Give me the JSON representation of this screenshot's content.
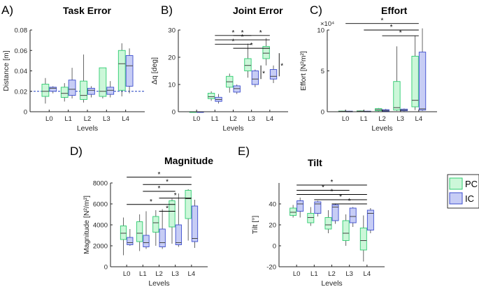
{
  "figure": {
    "legend": [
      {
        "name": "PC",
        "fill": "#ccf7d9",
        "stroke": "#2ecc71"
      },
      {
        "name": "IC",
        "fill": "#c7cdf5",
        "stroke": "#3b4ccf"
      }
    ],
    "colors": {
      "pc_fill": "#ccf7d9",
      "pc_edge": "#2ecc71",
      "ic_fill": "#c7cdf5",
      "ic_edge": "#3b4ccf",
      "axis": "#262626",
      "whisker": "#555555",
      "ref_line": "#1f3fbf"
    }
  },
  "chart_data": [
    {
      "id": "A",
      "letter": "A)",
      "type": "box",
      "title": "Task Error",
      "xlabel": "Levels",
      "ylabel": "Distance [m]",
      "categories": [
        "L0",
        "L1",
        "L2",
        "L3",
        "L4"
      ],
      "ylim": [
        0,
        0.08
      ],
      "yticks": [
        0,
        0.02,
        0.04,
        0.06,
        0.08
      ],
      "ytick_labels": [
        "0",
        "0.02",
        "0.04",
        "0.06",
        "0.08"
      ],
      "exponent_label": "",
      "reference_line": 0.02,
      "series": [
        {
          "name": "PC",
          "boxes": [
            {
              "min": 0.008,
              "q1": 0.015,
              "median": 0.02,
              "q3": 0.027,
              "max": 0.033
            },
            {
              "min": 0.01,
              "q1": 0.014,
              "median": 0.018,
              "q3": 0.024,
              "max": 0.028
            },
            {
              "min": 0.009,
              "q1": 0.012,
              "median": 0.016,
              "q3": 0.03,
              "max": 0.056
            },
            {
              "min": 0.013,
              "q1": 0.015,
              "median": 0.02,
              "q3": 0.043,
              "max": 0.043
            },
            {
              "min": 0.015,
              "q1": 0.021,
              "median": 0.047,
              "q3": 0.06,
              "max": 0.067
            }
          ]
        },
        {
          "name": "IC",
          "boxes": [
            {
              "min": 0.018,
              "q1": 0.02,
              "median": 0.023,
              "q3": 0.024,
              "max": 0.025
            },
            {
              "min": 0.013,
              "q1": 0.016,
              "median": 0.022,
              "q3": 0.031,
              "max": 0.043
            },
            {
              "min": 0.014,
              "q1": 0.017,
              "median": 0.021,
              "q3": 0.023,
              "max": 0.025
            },
            {
              "min": 0.014,
              "q1": 0.017,
              "median": 0.021,
              "q3": 0.024,
              "max": 0.03
            },
            {
              "min": 0.018,
              "q1": 0.025,
              "median": 0.045,
              "q3": 0.055,
              "max": 0.062
            }
          ]
        }
      ],
      "significance": []
    },
    {
      "id": "B",
      "letter": "B)",
      "type": "box",
      "title": "Joint Error",
      "xlabel": "Levels",
      "ylabel": "Δq [deg]",
      "categories": [
        "L0",
        "L1",
        "L2",
        "L3",
        "L4"
      ],
      "ylim": [
        0,
        30
      ],
      "yticks": [
        0,
        10,
        20,
        30
      ],
      "ytick_labels": [
        "0",
        "10",
        "20",
        "30"
      ],
      "exponent_label": "",
      "series": [
        {
          "name": "PC",
          "boxes": [
            {
              "min": 0,
              "q1": 0,
              "median": 0,
              "q3": 0,
              "max": 0
            },
            {
              "min": 4.0,
              "q1": 4.8,
              "median": 5.5,
              "q3": 6.8,
              "max": 7.5
            },
            {
              "min": 7.0,
              "q1": 9.0,
              "median": 11.0,
              "q3": 13.0,
              "max": 14.0
            },
            {
              "min": 12.5,
              "q1": 15.0,
              "median": 17.0,
              "q3": 19.5,
              "max": 25.0
            },
            {
              "min": 17.0,
              "q1": 19.5,
              "median": 21.5,
              "q3": 24.0,
              "max": 27.0
            }
          ]
        },
        {
          "name": "IC",
          "boxes": [
            {
              "min": 0,
              "q1": 0,
              "median": 0,
              "q3": 0,
              "max": 0
            },
            {
              "min": 3.0,
              "q1": 3.8,
              "median": 4.5,
              "q3": 5.3,
              "max": 6.5
            },
            {
              "min": 6.5,
              "q1": 7.2,
              "median": 8.5,
              "q3": 9.5,
              "max": 10.0
            },
            {
              "min": 9.0,
              "q1": 10.0,
              "median": 12.0,
              "q3": 15.0,
              "max": 15.5
            },
            {
              "min": 10.5,
              "q1": 12.0,
              "median": 13.0,
              "q3": 15.5,
              "max": 17.0
            }
          ]
        }
      ],
      "significance": [
        {
          "label": "*",
          "from": "L1",
          "to": "L3",
          "y": 28.0
        },
        {
          "label": "*",
          "from": "L3",
          "to": "L4",
          "y": 28.0
        },
        {
          "label": "*",
          "from": "L2",
          "to": "L3",
          "y": 28.0
        },
        {
          "label": "*",
          "from": "L1",
          "to": "L4",
          "y": 26.4
        },
        {
          "label": "*",
          "from": "L1",
          "to": "L3",
          "y": 24.8
        },
        {
          "label": "*",
          "from": "L2",
          "to": "L4",
          "y": 23.3
        },
        {
          "label": "*",
          "vertical": true,
          "at": "L3",
          "y1": 12.0,
          "y2": 17.0
        },
        {
          "label": "*",
          "vertical": true,
          "at": "L4",
          "y1": 13.0,
          "y2": 21.5
        }
      ]
    },
    {
      "id": "C",
      "letter": "C)",
      "type": "box",
      "title": "Effort",
      "xlabel": "Levels",
      "ylabel": "Effort [N²m²]",
      "categories": [
        "L0",
        "L1",
        "L2",
        "L3",
        "L4"
      ],
      "ylim": [
        0,
        100000
      ],
      "yticks": [
        0,
        50000,
        100000
      ],
      "ytick_labels": [
        "0",
        "5",
        "10"
      ],
      "exponent_label": "×10⁴",
      "series": [
        {
          "name": "PC",
          "boxes": [
            {
              "min": 0,
              "q1": 200,
              "median": 500,
              "q3": 800,
              "max": 1200
            },
            {
              "min": 0,
              "q1": 300,
              "median": 600,
              "q3": 1000,
              "max": 1500
            },
            {
              "min": 500,
              "q1": 1200,
              "median": 2500,
              "q3": 3800,
              "max": 4500
            },
            {
              "min": 1000,
              "q1": 2000,
              "median": 5000,
              "q3": 37000,
              "max": 80000
            },
            {
              "min": 2000,
              "q1": 6000,
              "median": 14000,
              "q3": 68000,
              "max": 93000
            }
          ]
        },
        {
          "name": "IC",
          "boxes": [
            {
              "min": 0,
              "q1": 200,
              "median": 400,
              "q3": 700,
              "max": 1000
            },
            {
              "min": 0,
              "q1": 200,
              "median": 400,
              "q3": 700,
              "max": 1000
            },
            {
              "min": 300,
              "q1": 800,
              "median": 1500,
              "q3": 2500,
              "max": 3500
            },
            {
              "min": 500,
              "q1": 1200,
              "median": 2000,
              "q3": 3200,
              "max": 4000
            },
            {
              "min": 1000,
              "q1": 2000,
              "median": 3500,
              "q3": 73000,
              "max": 102000
            }
          ]
        }
      ],
      "significance": [
        {
          "label": "*",
          "from": "L0",
          "to": "L4",
          "y": 108000
        },
        {
          "label": "*",
          "from": "L1",
          "to": "L4",
          "y": 100000
        },
        {
          "label": "*",
          "from": "L2",
          "to": "L4",
          "y": 93000
        }
      ]
    },
    {
      "id": "D",
      "letter": "D)",
      "type": "box",
      "title": "Magnitude",
      "xlabel": "Levels",
      "ylabel": "Magnitude [N²/m²]",
      "categories": [
        "L0",
        "L1",
        "L2",
        "L3",
        "L4"
      ],
      "ylim": [
        0,
        8000
      ],
      "yticks": [
        0,
        2000,
        4000,
        6000,
        8000
      ],
      "ytick_labels": [
        "0",
        "2000",
        "4000",
        "6000",
        "8000"
      ],
      "exponent_label": "",
      "series": [
        {
          "name": "PC",
          "boxes": [
            {
              "min": 1100,
              "q1": 2600,
              "median": 3200,
              "q3": 3900,
              "max": 4700
            },
            {
              "min": 1500,
              "q1": 2400,
              "median": 3200,
              "q3": 4300,
              "max": 5000
            },
            {
              "min": 2000,
              "q1": 3300,
              "median": 4200,
              "q3": 4800,
              "max": 5400
            },
            {
              "min": 2200,
              "q1": 3800,
              "median": 5300,
              "q3": 6300,
              "max": 6500
            },
            {
              "min": 2500,
              "q1": 4600,
              "median": 6500,
              "q3": 7300,
              "max": 7400
            }
          ]
        },
        {
          "name": "IC",
          "boxes": [
            {
              "min": 2000,
              "q1": 2100,
              "median": 2300,
              "q3": 2800,
              "max": 3600
            },
            {
              "min": 1700,
              "q1": 1900,
              "median": 2300,
              "q3": 3000,
              "max": 5300
            },
            {
              "min": 1700,
              "q1": 1900,
              "median": 2300,
              "q3": 3600,
              "max": 5500
            },
            {
              "min": 1900,
              "q1": 2100,
              "median": 2300,
              "q3": 4000,
              "max": 7000
            },
            {
              "min": 1800,
              "q1": 2400,
              "median": 2700,
              "q3": 5800,
              "max": 6400
            }
          ]
        }
      ],
      "significance": [
        {
          "label": "*",
          "from": "L0",
          "to": "L4",
          "y": 8550
        },
        {
          "label": "*",
          "from": "L1",
          "to": "L4",
          "y": 7850
        },
        {
          "label": "*",
          "from": "L1",
          "to": "L3",
          "y": 7200
        },
        {
          "label": "*",
          "from": "L2",
          "to": "L4",
          "y": 6550
        },
        {
          "label": "*",
          "from": "L0",
          "to": "L3",
          "y": 5950
        },
        {
          "label": "*",
          "from": "L2",
          "to": "L3",
          "y": 5300
        }
      ]
    },
    {
      "id": "E",
      "letter": "E)",
      "type": "box",
      "title": "Tilt",
      "xlabel": "Levels",
      "ylabel": "Tilt [°]",
      "categories": [
        "L0",
        "L1",
        "L2",
        "L3",
        "L4"
      ],
      "ylim": [
        -20,
        60
      ],
      "yticks": [
        -20,
        0,
        20,
        40
      ],
      "ytick_labels": [
        "-20",
        "0",
        "20",
        "40"
      ],
      "exponent_label": "",
      "series": [
        {
          "name": "PC",
          "boxes": [
            {
              "min": 27,
              "q1": 29,
              "median": 32,
              "q3": 36,
              "max": 39
            },
            {
              "min": 19,
              "q1": 22,
              "median": 27,
              "q3": 31,
              "max": 37
            },
            {
              "min": 12,
              "q1": 16,
              "median": 20,
              "q3": 27,
              "max": 34
            },
            {
              "min": 0,
              "q1": 5,
              "median": 12,
              "q3": 24,
              "max": 30
            },
            {
              "min": -15,
              "q1": -4,
              "median": 5,
              "q3": 17,
              "max": 29
            }
          ]
        },
        {
          "name": "IC",
          "boxes": [
            {
              "min": 27,
              "q1": 33,
              "median": 40,
              "q3": 43,
              "max": 46
            },
            {
              "min": 28,
              "q1": 31,
              "median": 40,
              "q3": 42,
              "max": 43
            },
            {
              "min": 21,
              "q1": 24,
              "median": 37,
              "q3": 39,
              "max": 40
            },
            {
              "min": 18,
              "q1": 22,
              "median": 28,
              "q3": 36,
              "max": 37
            },
            {
              "min": 12,
              "q1": 15,
              "median": 31,
              "q3": 34,
              "max": 36
            }
          ]
        }
      ],
      "significance": [
        {
          "label": "*",
          "from": "L0",
          "to": "L4",
          "y": 58
        },
        {
          "label": "*",
          "from": "L0",
          "to": "L3",
          "y": 53
        },
        {
          "label": "*",
          "from": "L0",
          "to": "L4",
          "y": 49
        },
        {
          "label": "*",
          "from": "L1",
          "to": "L4",
          "y": 44
        },
        {
          "label": "*",
          "from": "L2",
          "to": "L4",
          "y": 40
        }
      ]
    }
  ]
}
